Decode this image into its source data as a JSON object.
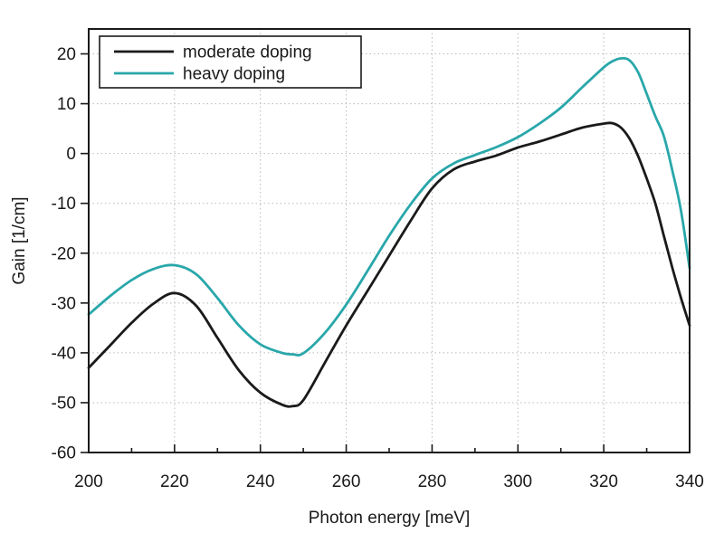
{
  "figure": {
    "background": "#ffffff",
    "text_color": "#1a1a1a",
    "grid_color": "#b9b9b9",
    "spine_color": "#1a1a1a"
  },
  "chart_data": {
    "type": "line",
    "title": "",
    "xlabel": "Photon energy [meV]",
    "ylabel": "Gain [1/cm]",
    "xlim": [
      200,
      340
    ],
    "ylim": [
      -60,
      25
    ],
    "x_major_ticks": [
      200,
      220,
      240,
      260,
      280,
      300,
      320,
      340
    ],
    "x_minor_ticks": [
      210,
      230,
      250,
      270,
      290,
      310,
      330
    ],
    "y_major_ticks": [
      -60,
      -50,
      -40,
      -30,
      -20,
      -10,
      0,
      10,
      20
    ],
    "grid": true,
    "legend_position": "top-left",
    "x": [
      200,
      205,
      210,
      215,
      220,
      225,
      230,
      235,
      240,
      245,
      247.5,
      250,
      255,
      260,
      265,
      270,
      275,
      280,
      285,
      290,
      295,
      300,
      305,
      310,
      315,
      320,
      322,
      324,
      326,
      328,
      330,
      332,
      334,
      336,
      338,
      340
    ],
    "series": [
      {
        "name": "moderate doping",
        "color": "#1a1a1a",
        "values": [
          -43,
          -38.5,
          -34,
          -30.2,
          -28,
          -30.5,
          -37,
          -43.5,
          -48,
          -50.4,
          -50.7,
          -49.5,
          -42,
          -34.5,
          -27.5,
          -20.5,
          -13.5,
          -7,
          -3.2,
          -1.6,
          -0.4,
          1.2,
          2.4,
          3.8,
          5.2,
          6.0,
          6.1,
          5.2,
          3.0,
          -0.5,
          -5,
          -10,
          -16.5,
          -23,
          -29,
          -34.5
        ]
      },
      {
        "name": "heavy doping",
        "color": "#29a7aa",
        "values": [
          -32.3,
          -28.6,
          -25.4,
          -23.2,
          -22.4,
          -24.2,
          -29,
          -34.5,
          -38.3,
          -40,
          -40.3,
          -40.1,
          -36,
          -30.3,
          -23.5,
          -16.5,
          -10.2,
          -5,
          -2,
          -0.3,
          1.3,
          3.3,
          6,
          9.2,
          13.3,
          17.3,
          18.5,
          19.1,
          18.7,
          16.3,
          12,
          7.5,
          3.5,
          -3.5,
          -11.5,
          -23
        ]
      }
    ]
  }
}
